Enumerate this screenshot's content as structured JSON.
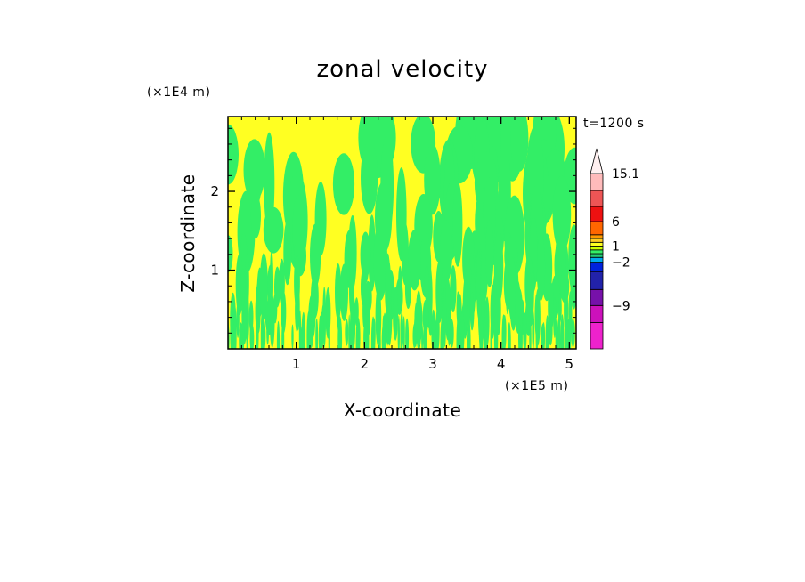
{
  "chart_data": {
    "type": "heatmap",
    "title": "zonal velocity",
    "xlabel": "X-coordinate",
    "ylabel": "Z-coordinate",
    "x_unit": "(×1E5 m)",
    "y_unit": "(×1E4 m)",
    "time_label": "t=1200 s",
    "xlim": [
      0.0,
      5.1
    ],
    "ylim": [
      0.0,
      2.95
    ],
    "x_ticks": [
      1,
      2,
      3,
      4,
      5
    ],
    "y_ticks": [
      1,
      2
    ],
    "grid": false,
    "legend_position": "right",
    "colorbar": {
      "levels": [
        -15,
        -12,
        -9,
        -6,
        -4,
        -2,
        -1.5,
        -1,
        0,
        1,
        1.5,
        2,
        4,
        6,
        9,
        12,
        15.1
      ],
      "labels": [
        {
          "value": 15.1,
          "text": "15.1"
        },
        {
          "value": 6,
          "text": "6"
        },
        {
          "value": 1,
          "text": "1"
        },
        {
          "value": -2,
          "text": "−2"
        },
        {
          "value": -9,
          "text": "−9"
        }
      ],
      "colors": [
        "#ee22cc",
        "#cc11bb",
        "#7711aa",
        "#2222aa",
        "#0022dd",
        "#00aaee",
        "#22cc77",
        "#33ee66",
        "#ccff00",
        "#ffff22",
        "#ffcc22",
        "#ff9900",
        "#ff6600",
        "#ee1111",
        "#ee5555",
        "#ffbbbb"
      ],
      "extend_top": true
    },
    "field": {
      "dominant_values": [
        {
          "value": 0.5,
          "color": "#ffff22"
        },
        {
          "value": -0.5,
          "color": "#33ee66"
        }
      ],
      "description": "alternating vertical plumes, finer scale near the bottom"
    }
  }
}
